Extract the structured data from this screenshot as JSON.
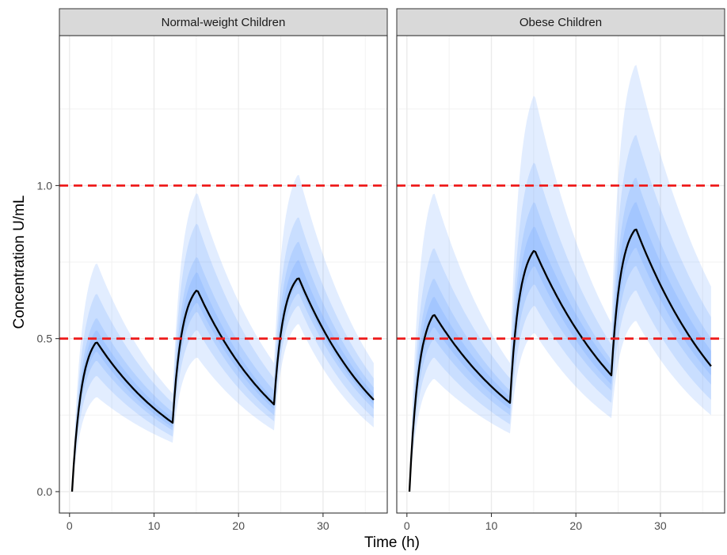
{
  "chart_data": {
    "type": "area",
    "title": "",
    "xlabel": "Time (h)",
    "ylabel": "Concentration U/mL",
    "xlim": [
      -1.2,
      37.6
    ],
    "ylim": [
      -0.07,
      1.49
    ],
    "x_ticks": [
      0,
      10,
      20,
      30
    ],
    "x_tick_labels": [
      "0",
      "10",
      "20",
      "30"
    ],
    "y_ticks": [
      0.0,
      0.5,
      1.0
    ],
    "y_tick_labels": [
      "0.0",
      "0.5",
      "1.0"
    ],
    "grid": true,
    "legend": "none",
    "reference_lines": [
      {
        "y": 0.5,
        "style": "dashed",
        "color": "#ee1c1c"
      },
      {
        "y": 1.0,
        "style": "dashed",
        "color": "#ee1c1c"
      }
    ],
    "dose_times": [
      0.3,
      12.2,
      24.2
    ],
    "end_time": 36,
    "band_color": "#4a8cff",
    "median_color": "#000000",
    "panels": [
      {
        "label": "Normal-weight Children",
        "peaks": {
          "median": [
            0.49,
            0.66,
            0.7
          ],
          "upper": [
            [
              0.75,
              0.98,
              1.04
            ],
            [
              0.65,
              0.88,
              0.9
            ],
            [
              0.57,
              0.77,
              0.82
            ],
            [
              0.53,
              0.72,
              0.76
            ]
          ],
          "lower": [
            [
              0.31,
              0.44,
              0.55
            ],
            [
              0.38,
              0.53,
              0.61
            ],
            [
              0.43,
              0.59,
              0.65
            ],
            [
              0.46,
              0.62,
              0.68
            ]
          ]
        },
        "troughs": {
          "median": [
            0.225,
            0.285,
            0.3
          ],
          "upper": [
            [
              0.32,
              0.42,
              0.42
            ],
            [
              0.29,
              0.37,
              0.37
            ],
            [
              0.26,
              0.33,
              0.34
            ],
            [
              0.24,
              0.3,
              0.32
            ]
          ],
          "lower": [
            [
              0.16,
              0.2,
              0.21
            ],
            [
              0.18,
              0.23,
              0.24
            ],
            [
              0.2,
              0.25,
              0.27
            ],
            [
              0.21,
              0.27,
              0.285
            ]
          ]
        }
      },
      {
        "label": "Obese Children",
        "peaks": {
          "median": [
            0.58,
            0.79,
            0.86
          ],
          "upper": [
            [
              0.98,
              1.3,
              1.4
            ],
            [
              0.8,
              1.08,
              1.17
            ],
            [
              0.7,
              0.95,
              1.03
            ],
            [
              0.64,
              0.87,
              0.95
            ]
          ],
          "lower": [
            [
              0.37,
              0.52,
              0.56
            ],
            [
              0.44,
              0.61,
              0.66
            ],
            [
              0.5,
              0.68,
              0.74
            ],
            [
              0.54,
              0.74,
              0.8
            ]
          ]
        },
        "troughs": {
          "median": [
            0.29,
            0.38,
            0.41
          ],
          "upper": [
            [
              0.42,
              0.55,
              0.67
            ],
            [
              0.37,
              0.48,
              0.57
            ],
            [
              0.33,
              0.43,
              0.5
            ],
            [
              0.31,
              0.41,
              0.46
            ]
          ],
          "lower": [
            [
              0.19,
              0.24,
              0.25
            ],
            [
              0.22,
              0.29,
              0.3
            ],
            [
              0.25,
              0.33,
              0.35
            ],
            [
              0.27,
              0.35,
              0.38
            ]
          ]
        }
      }
    ]
  }
}
